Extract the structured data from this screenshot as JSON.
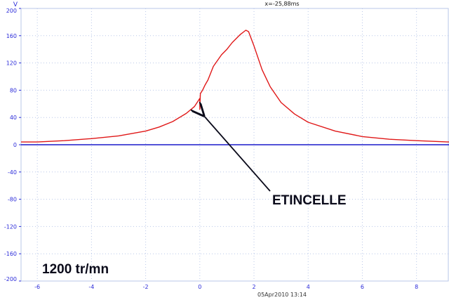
{
  "chart_data": {
    "type": "line",
    "title": "",
    "xlabel": "",
    "ylabel": "V",
    "xlim": [
      -6.6,
      9.2
    ],
    "ylim": [
      -200,
      200
    ],
    "x_ticks": [
      -6,
      -4,
      -2,
      0,
      2,
      4,
      6,
      8
    ],
    "y_ticks": [
      200,
      160,
      120,
      80,
      40,
      0,
      -40,
      -80,
      -120,
      -160,
      -200
    ],
    "grid": true,
    "series": [
      {
        "color": "#e01818",
        "x": [
          -6.6,
          -6.0,
          -5.0,
          -4.0,
          -3.0,
          -2.0,
          -1.5,
          -1.0,
          -0.5,
          -0.2,
          0.0,
          0.0,
          0.02,
          0.1,
          0.2,
          0.3,
          0.5,
          0.8,
          1.0,
          1.2,
          1.5,
          1.7,
          1.8,
          2.0,
          2.3,
          2.6,
          3.0,
          3.5,
          4.0,
          5.0,
          6.0,
          7.0,
          8.0,
          9.2
        ],
        "values": [
          4,
          4,
          6,
          9,
          13,
          20,
          26,
          34,
          46,
          56,
          68,
          52,
          75,
          80,
          88,
          95,
          115,
          132,
          140,
          150,
          162,
          168,
          166,
          145,
          110,
          85,
          62,
          45,
          33,
          20,
          12,
          8,
          6,
          4
        ]
      },
      {
        "color": "#1a1acc",
        "x": [
          -6.6,
          9.2
        ],
        "values": [
          0,
          0
        ]
      }
    ]
  },
  "axis": {
    "unit_label": "V"
  },
  "header": {
    "cursor_readout": "x=-25,88ms"
  },
  "footer": {
    "timestamp": "05Apr2010  13:14"
  },
  "labels": {
    "spark_annotation": "ETINCELLE",
    "engine_speed": "1200 tr/mn"
  },
  "colors": {
    "signal": "#e01818",
    "baseline": "#1a1acc",
    "grid": "#b9c7e8",
    "axis_text": "#2b2bd9"
  },
  "icons": {
    "arrow": "annotation-arrow-icon"
  }
}
